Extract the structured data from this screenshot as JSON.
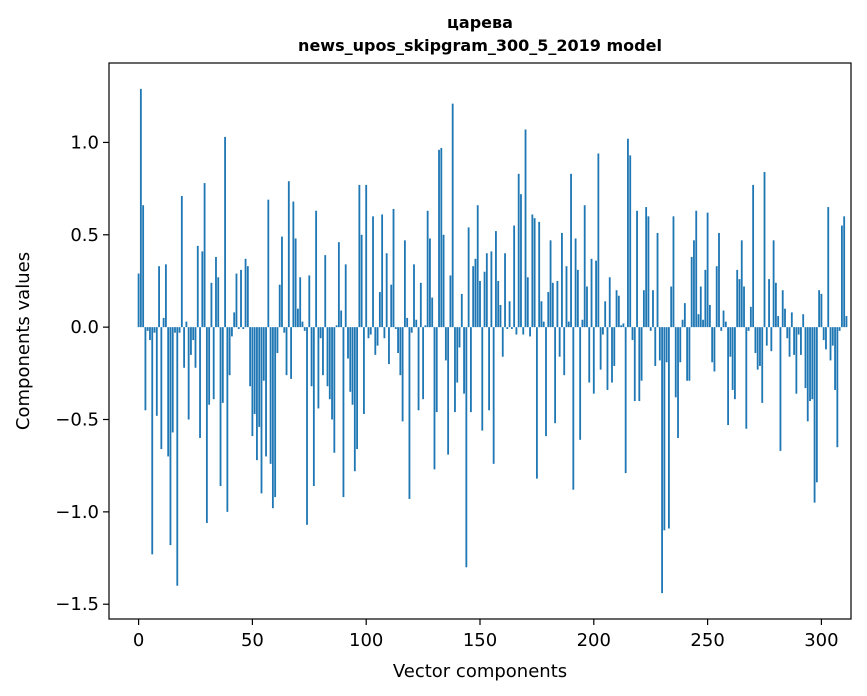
{
  "chart_data": {
    "type": "bar",
    "title": "царева",
    "subtitle": "news_upos_skipgram_300_5_2019 model",
    "xlabel": "Vector components",
    "ylabel": "Components values",
    "xlim": [
      -13,
      313
    ],
    "ylim": [
      -1.58,
      1.43
    ],
    "xticks": [
      0,
      50,
      100,
      150,
      200,
      250,
      300
    ],
    "xtick_labels": [
      "0",
      "50",
      "100",
      "150",
      "200",
      "250",
      "300"
    ],
    "yticks": [
      -1.5,
      -1.0,
      -0.5,
      0.0,
      0.5,
      1.0
    ],
    "ytick_labels": [
      "−1.5",
      "−1.0",
      "−0.5",
      "0.0",
      "0.5",
      "1.0"
    ],
    "bar_color": "#1f77b4",
    "grid": false,
    "values": [
      0.29,
      1.29,
      0.66,
      -0.45,
      -0.02,
      -0.07,
      -1.23,
      -0.03,
      -0.48,
      0.33,
      -0.66,
      0.05,
      0.34,
      -0.7,
      -1.18,
      -0.57,
      -0.03,
      -1.4,
      -0.03,
      0.71,
      -0.22,
      0.03,
      -0.5,
      -0.15,
      -0.07,
      -0.22,
      0.44,
      -0.6,
      0.41,
      0.78,
      -1.06,
      -0.42,
      0.24,
      -0.39,
      0.38,
      0.27,
      -0.86,
      -0.41,
      1.03,
      -1.0,
      -0.26,
      -0.05,
      0.08,
      0.29,
      -0.01,
      0.31,
      -0.01,
      0.37,
      0.33,
      -0.32,
      -0.59,
      -0.47,
      -0.72,
      -0.54,
      -0.9,
      -0.29,
      -0.7,
      0.69,
      -0.74,
      -0.98,
      -0.92,
      -0.14,
      0.23,
      0.49,
      -0.03,
      -0.26,
      0.79,
      -0.28,
      0.68,
      0.48,
      0.1,
      0.27,
      0.03,
      -0.02,
      -1.07,
      0.28,
      -0.32,
      -0.86,
      0.63,
      -0.44,
      -0.06,
      -0.26,
      0.39,
      -0.32,
      -0.39,
      -0.5,
      -0.68,
      0.01,
      0.46,
      0.09,
      -0.92,
      0.34,
      -0.17,
      -0.35,
      -0.42,
      -0.78,
      -0.66,
      0.77,
      0.5,
      -0.47,
      0.77,
      -0.06,
      -0.04,
      0.6,
      -0.15,
      -0.1,
      0.19,
      0.61,
      -0.06,
      0.4,
      -0.2,
      0.23,
      0.64,
      -0.01,
      -0.14,
      -0.26,
      -0.51,
      0.47,
      0.05,
      -0.93,
      -0.03,
      0.34,
      0.04,
      -0.45,
      0.24,
      -0.39,
      0.01,
      0.63,
      0.48,
      0.16,
      -0.77,
      -0.46,
      0.96,
      0.97,
      0.5,
      -0.18,
      -0.69,
      0.28,
      1.21,
      -0.46,
      -0.3,
      -0.11,
      0.18,
      -0.36,
      -1.3,
      0.54,
      -0.46,
      0.33,
      0.37,
      0.66,
      0.25,
      -0.56,
      0.3,
      0.4,
      -0.45,
      0.41,
      -0.74,
      0.52,
      0.25,
      0.12,
      -0.16,
      0.4,
      -0.01,
      0.14,
      -0.01,
      0.55,
      -0.04,
      0.83,
      0.72,
      -0.04,
      1.07,
      0.27,
      -0.05,
      0.61,
      0.59,
      -0.82,
      0.57,
      0.14,
      0.03,
      -0.59,
      0.19,
      0.47,
      0.24,
      -0.52,
      0.25,
      -0.16,
      0.51,
      -0.26,
      0.33,
      0.03,
      0.83,
      -0.88,
      0.48,
      0.31,
      -0.61,
      0.04,
      0.66,
      0.22,
      -0.3,
      0.37,
      -0.36,
      0.36,
      0.94,
      -0.23,
      -0.04,
      0.14,
      -0.34,
      0.27,
      -0.3,
      -0.21,
      0.2,
      0.17,
      0.01,
      0.02,
      -0.79,
      1.02,
      0.93,
      -0.07,
      -0.4,
      0.63,
      -0.4,
      -0.29,
      0.2,
      0.65,
      0.6,
      -0.02,
      0.2,
      -0.21,
      0.51,
      -0.18,
      -1.44,
      -1.1,
      -0.19,
      -1.09,
      0.22,
      0.6,
      -0.38,
      -0.6,
      -0.19,
      0.04,
      0.13,
      -0.29,
      -0.29,
      0.38,
      0.47,
      0.63,
      0.07,
      0.22,
      0.04,
      0.31,
      0.62,
      0.12,
      -0.19,
      -0.24,
      0.33,
      0.51,
      -0.02,
      0.09,
      0.03,
      -0.53,
      -0.16,
      -0.34,
      -0.39,
      0.31,
      0.26,
      0.47,
      0.22,
      -0.55,
      -0.02,
      0.11,
      0.77,
      -0.14,
      -0.23,
      -0.21,
      -0.41,
      0.84,
      -0.1,
      0.26,
      -0.13,
      0.47,
      0.24,
      0.06,
      -0.67,
      0.2,
      0.1,
      -0.06,
      -0.16,
      0.08,
      -0.15,
      -0.36,
      -0.04,
      -0.15,
      0.07,
      -0.33,
      -0.51,
      -0.4,
      -0.39,
      -0.95,
      -0.84,
      0.2,
      0.18,
      -0.07,
      -0.12,
      0.65,
      -0.18,
      -0.1,
      -0.34,
      -0.65,
      -0.02,
      0.55,
      0.6,
      0.06
    ]
  }
}
